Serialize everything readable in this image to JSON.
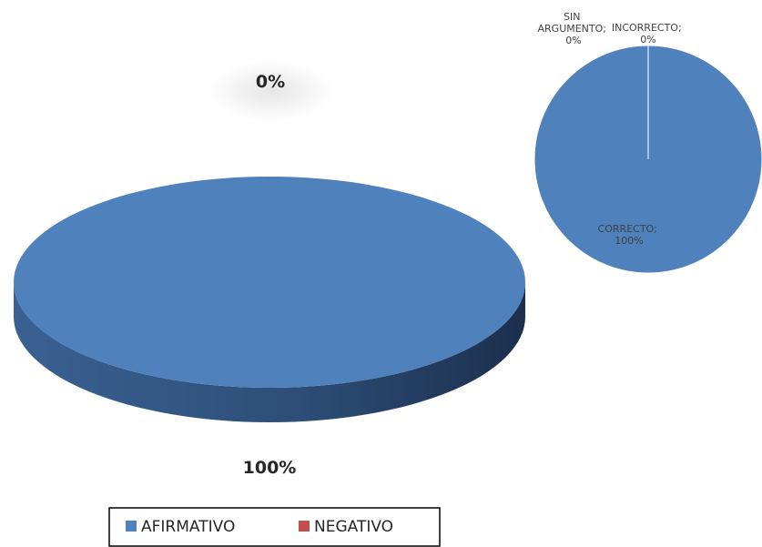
{
  "chart_data": [
    {
      "type": "pie",
      "style": "3d",
      "categories": [
        "AFIRMATIVO",
        "NEGATIVO"
      ],
      "values": [
        100,
        0
      ],
      "data_labels": [
        "100%",
        "0%"
      ],
      "legend": [
        "AFIRMATIVO",
        "NEGATIVO"
      ],
      "legend_position": "bottom",
      "colors": [
        "#4f81bd",
        "#c0504d"
      ]
    },
    {
      "type": "pie",
      "categories": [
        "CORRECTO",
        "INCORRECTO",
        "SIN ARGUMENTO"
      ],
      "values": [
        100,
        0,
        0
      ],
      "data_labels": [
        "CORRECTO;\n100%",
        "INCORRECTO;\n0%",
        "SIN\nARGUMENTO;\n0%"
      ],
      "colors": [
        "#4f81bd",
        "#c0504d",
        "#9bbb59"
      ]
    }
  ]
}
